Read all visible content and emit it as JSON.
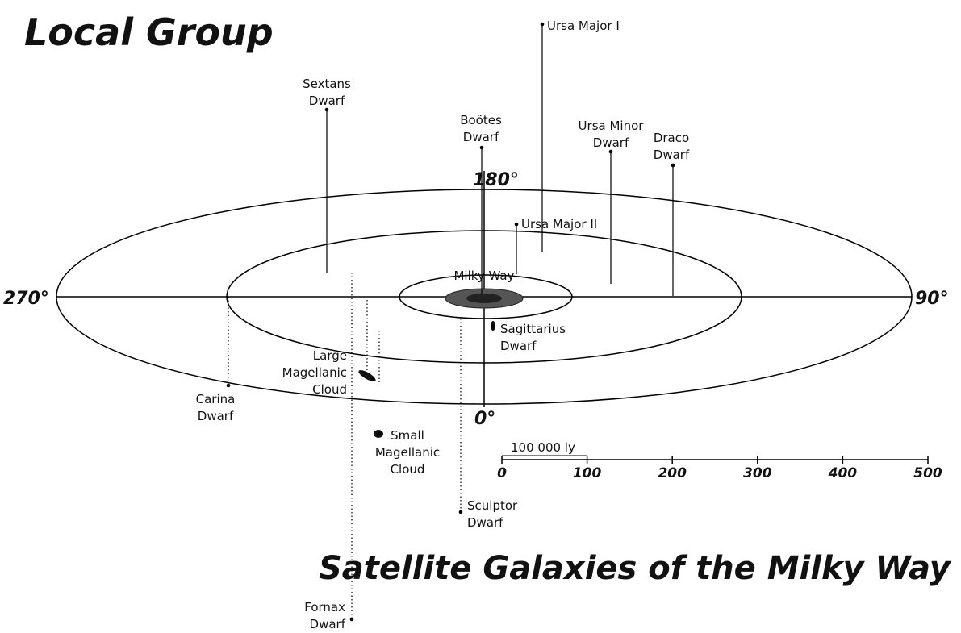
{
  "title": "Local Group",
  "subtitle": "Satellite Galaxies of the Milky Way",
  "angles": [
    "270°",
    "90°",
    "180°",
    "0°"
  ],
  "center_label": "Milky Way",
  "galaxies": [
    {
      "name": [
        "Ursa Major I"
      ]
    },
    {
      "name": [
        "Sextans",
        "Dwarf"
      ]
    },
    {
      "name": [
        "Boötes",
        "Dwarf"
      ]
    },
    {
      "name": [
        "Ursa Minor",
        "Dwarf"
      ]
    },
    {
      "name": [
        "Draco",
        "Dwarf"
      ]
    },
    {
      "name": [
        "Ursa Major II"
      ]
    },
    {
      "name": [
        "Sagittarius",
        "Dwarf"
      ]
    },
    {
      "name": [
        "Large",
        "Magellanic",
        "Cloud"
      ]
    },
    {
      "name": [
        "Small",
        "Magellanic",
        "Cloud"
      ]
    },
    {
      "name": [
        "Carina",
        "Dwarf"
      ]
    },
    {
      "name": [
        "Sculptor",
        "Dwarf"
      ]
    },
    {
      "name": [
        "Fornax",
        "Dwarf"
      ]
    }
  ],
  "scale": {
    "label": "100 000 ly",
    "ticks": [
      0,
      100,
      200,
      300,
      400,
      500
    ]
  }
}
